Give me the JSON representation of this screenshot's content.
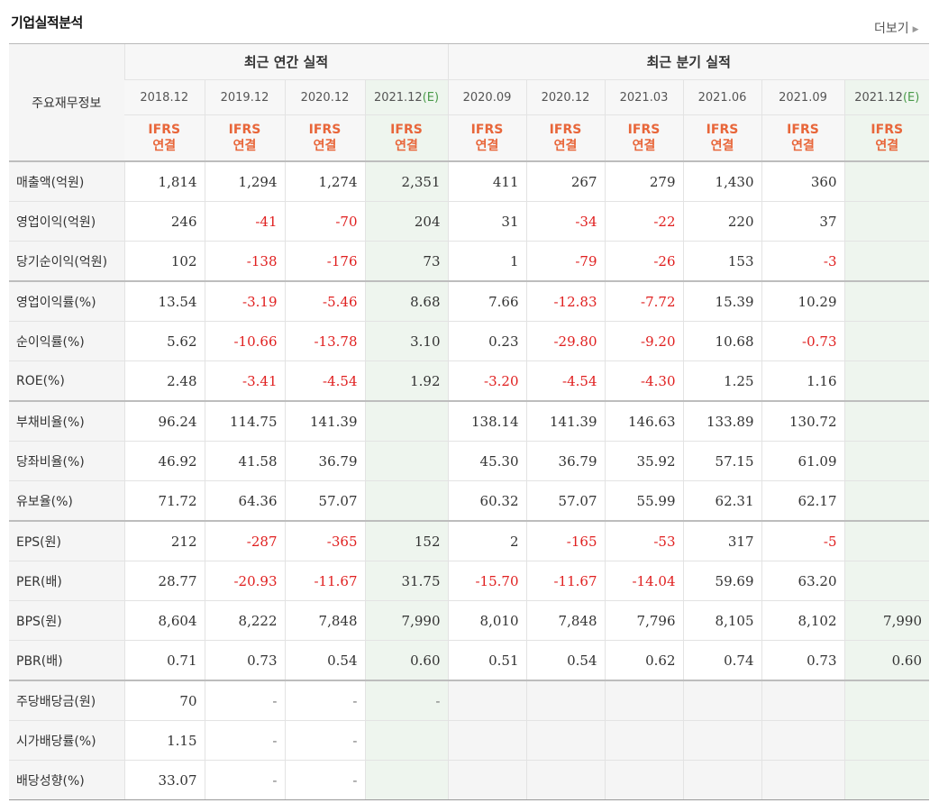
{
  "title": "기업실적분석",
  "more_label": "더보기",
  "header": {
    "row_label": "주요재무정보",
    "annual_title": "최근 연간 실적",
    "quarter_title": "최근 분기 실적",
    "ifrs_line1": "IFRS",
    "ifrs_line2": "연결",
    "periods": [
      "2018.12",
      "2019.12",
      "2020.12",
      "2021.12",
      "2020.09",
      "2020.12",
      "2021.03",
      "2021.06",
      "2021.09",
      "2021.12"
    ],
    "estimate_suffix": "(E)"
  },
  "rows": [
    {
      "label": "매출액(억원)",
      "values": [
        "1,814",
        "1,294",
        "1,274",
        "2,351",
        "411",
        "267",
        "279",
        "1,430",
        "360",
        ""
      ]
    },
    {
      "label": "영업이익(억원)",
      "values": [
        "246",
        "-41",
        "-70",
        "204",
        "31",
        "-34",
        "-22",
        "220",
        "37",
        ""
      ]
    },
    {
      "label": "당기순이익(억원)",
      "values": [
        "102",
        "-138",
        "-176",
        "73",
        "1",
        "-79",
        "-26",
        "153",
        "-3",
        ""
      ]
    },
    {
      "label": "영업이익률(%)",
      "values": [
        "13.54",
        "-3.19",
        "-5.46",
        "8.68",
        "7.66",
        "-12.83",
        "-7.72",
        "15.39",
        "10.29",
        ""
      ]
    },
    {
      "label": "순이익률(%)",
      "values": [
        "5.62",
        "-10.66",
        "-13.78",
        "3.10",
        "0.23",
        "-29.80",
        "-9.20",
        "10.68",
        "-0.73",
        ""
      ]
    },
    {
      "label": "ROE(%)",
      "values": [
        "2.48",
        "-3.41",
        "-4.54",
        "1.92",
        "-3.20",
        "-4.54",
        "-4.30",
        "1.25",
        "1.16",
        ""
      ]
    },
    {
      "label": "부채비율(%)",
      "values": [
        "96.24",
        "114.75",
        "141.39",
        "",
        "138.14",
        "141.39",
        "146.63",
        "133.89",
        "130.72",
        ""
      ]
    },
    {
      "label": "당좌비율(%)",
      "values": [
        "46.92",
        "41.58",
        "36.79",
        "",
        "45.30",
        "36.79",
        "35.92",
        "57.15",
        "61.09",
        ""
      ]
    },
    {
      "label": "유보율(%)",
      "values": [
        "71.72",
        "64.36",
        "57.07",
        "",
        "60.32",
        "57.07",
        "55.99",
        "62.31",
        "62.17",
        ""
      ]
    },
    {
      "label": "EPS(원)",
      "values": [
        "212",
        "-287",
        "-365",
        "152",
        "2",
        "-165",
        "-53",
        "317",
        "-5",
        ""
      ]
    },
    {
      "label": "PER(배)",
      "values": [
        "28.77",
        "-20.93",
        "-11.67",
        "31.75",
        "-15.70",
        "-11.67",
        "-14.04",
        "59.69",
        "63.20",
        ""
      ]
    },
    {
      "label": "BPS(원)",
      "values": [
        "8,604",
        "8,222",
        "7,848",
        "7,990",
        "8,010",
        "7,848",
        "7,796",
        "8,105",
        "8,102",
        "7,990"
      ]
    },
    {
      "label": "PBR(배)",
      "values": [
        "0.71",
        "0.73",
        "0.54",
        "0.60",
        "0.51",
        "0.54",
        "0.62",
        "0.74",
        "0.73",
        "0.60"
      ]
    },
    {
      "label": "주당배당금(원)",
      "values": [
        "70",
        "-",
        "-",
        "-",
        "",
        "",
        "",
        "",
        "",
        ""
      ]
    },
    {
      "label": "시가배당률(%)",
      "values": [
        "1.15",
        "-",
        "-",
        "",
        "",
        "",
        "",
        "",
        "",
        ""
      ]
    },
    {
      "label": "배당성향(%)",
      "values": [
        "33.07",
        "-",
        "-",
        "",
        "",
        "",
        "",
        "",
        "",
        ""
      ]
    }
  ],
  "colors": {
    "negative": "#e02020",
    "ifrs": "#e8663a",
    "estimate_bg": "#eef5ee",
    "estimate_text": "#4a9a4a"
  }
}
